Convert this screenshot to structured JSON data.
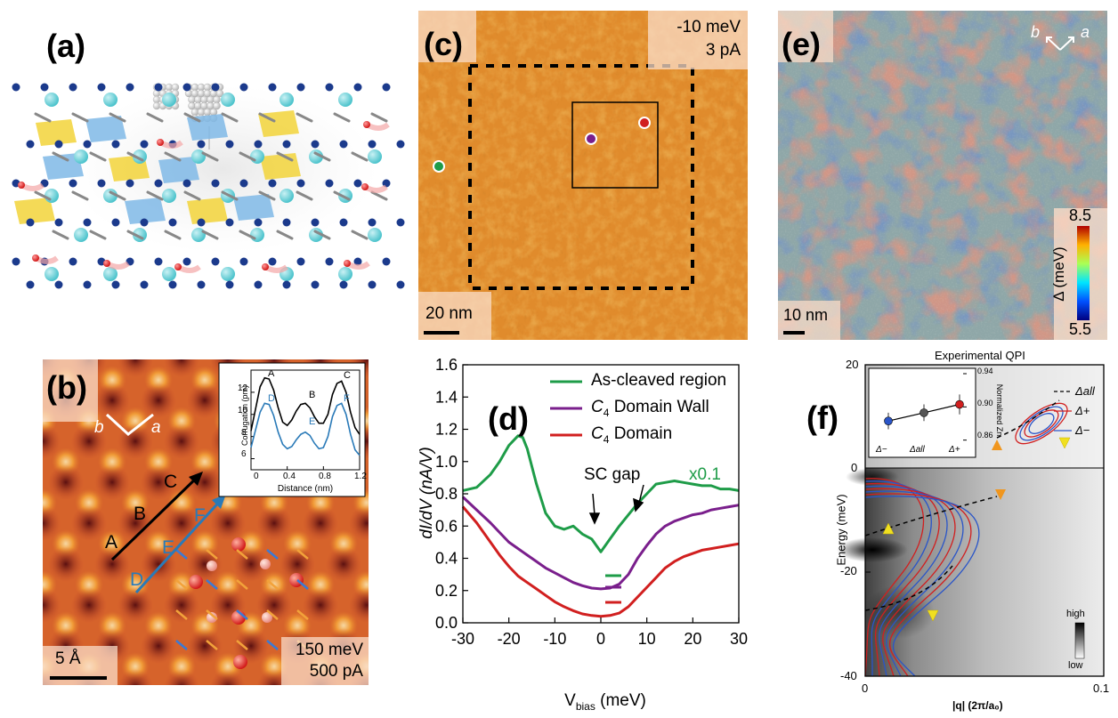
{
  "panels": {
    "a": {
      "label": "(a)"
    },
    "b": {
      "label": "(b)",
      "dir_b": "b",
      "dir_a": "a",
      "line_labels": [
        "A",
        "B",
        "C",
        "D",
        "E",
        "F"
      ],
      "scale": "5 Å",
      "bias": "150 meV",
      "current": "500 pA",
      "inset": {
        "ylabel": "Corrugation (pm)",
        "xlabel": "Distance (nm)",
        "yticks": [
          "6",
          "8",
          "10",
          "12"
        ],
        "xticks": [
          "0",
          "0.4",
          "0.8",
          "1.2"
        ],
        "peak_labels_black": [
          "A",
          "B",
          "C"
        ],
        "peak_labels_blue": [
          "D",
          "E",
          "F"
        ]
      }
    },
    "c": {
      "label": "(c)",
      "bias": "-10 meV",
      "current": "3 pA",
      "scale": "20 nm"
    },
    "d": {
      "label": "(d)",
      "ylabel": "dI/dV (nA/V)",
      "xlabel": "V",
      "xlabel_sub": "bias",
      "xlabel_unit": " (meV)",
      "annotation": "SC gap",
      "scale_note": "x0.1",
      "legend": [
        "As-cleaved region",
        "C",
        "C"
      ],
      "legend_suffix": [
        "",
        " Domain Wall",
        " Domain"
      ],
      "legend_sub": [
        "",
        "4",
        "4"
      ]
    },
    "e": {
      "label": "(e)",
      "dir_b": "b",
      "dir_a": "a",
      "scale": "10 nm",
      "colorbar_max": "8.5",
      "colorbar_min": "5.5",
      "colorbar_label": "Δ (meV)"
    },
    "f": {
      "label": "(f)",
      "title": "Experimental QPI",
      "ylabel": "Energy (meV)",
      "xlabel": "|q| (2π/a₀)",
      "yticks": [
        "20",
        "0",
        "-20",
        "-40"
      ],
      "xticks": [
        "0",
        "0.1"
      ],
      "legend": [
        "Δall",
        "Δ+",
        "Δ−"
      ],
      "colorbar_high": "high",
      "colorbar_low": "low",
      "inset": {
        "ylabel": "Normalized Zn",
        "yticks": [
          "0.94",
          "0.90",
          "0.86"
        ],
        "xticks": [
          "Δ−",
          "Δall",
          "Δ+"
        ]
      }
    }
  },
  "chart_data": [
    {
      "type": "line",
      "panel": "d",
      "xlabel": "Vbias (meV)",
      "ylabel": "dI/dV (nA/V)",
      "xlim": [
        -30,
        30
      ],
      "ylim": [
        0,
        1.6
      ],
      "xticks": [
        -30,
        -20,
        -10,
        0,
        10,
        20,
        30
      ],
      "yticks": [
        0.0,
        0.2,
        0.4,
        0.6,
        0.8,
        1.0,
        1.2,
        1.4,
        1.6
      ],
      "x": [
        -30,
        -27,
        -24,
        -22,
        -20,
        -18,
        -17,
        -16,
        -14,
        -12,
        -10,
        -8,
        -6,
        -4,
        -2,
        0,
        2,
        4,
        6,
        8,
        10,
        12,
        14,
        16,
        18,
        20,
        22,
        24,
        26,
        28,
        30
      ],
      "series": [
        {
          "name": "As-cleaved region",
          "color": "#1e9c48",
          "values": [
            0.82,
            0.84,
            0.92,
            1.0,
            1.1,
            1.16,
            1.15,
            1.08,
            0.86,
            0.68,
            0.6,
            0.58,
            0.6,
            0.55,
            0.52,
            0.44,
            0.52,
            0.6,
            0.67,
            0.74,
            0.8,
            0.86,
            0.87,
            0.88,
            0.87,
            0.86,
            0.85,
            0.85,
            0.83,
            0.83,
            0.82
          ]
        },
        {
          "name": "C4 Domain Wall",
          "color": "#7a1f8c",
          "values": [
            0.78,
            0.7,
            0.62,
            0.56,
            0.5,
            0.46,
            0.44,
            0.42,
            0.38,
            0.34,
            0.31,
            0.28,
            0.25,
            0.23,
            0.215,
            0.21,
            0.215,
            0.24,
            0.3,
            0.4,
            0.48,
            0.55,
            0.6,
            0.63,
            0.65,
            0.67,
            0.68,
            0.7,
            0.71,
            0.72,
            0.73
          ]
        },
        {
          "name": "C4 Domain",
          "color": "#d11f1f",
          "values": [
            0.72,
            0.62,
            0.5,
            0.42,
            0.35,
            0.29,
            0.27,
            0.25,
            0.21,
            0.17,
            0.13,
            0.1,
            0.075,
            0.055,
            0.045,
            0.04,
            0.045,
            0.06,
            0.1,
            0.16,
            0.22,
            0.28,
            0.34,
            0.38,
            0.41,
            0.43,
            0.45,
            0.46,
            0.47,
            0.48,
            0.49
          ]
        }
      ],
      "annotation": "SC gap",
      "scale_note": "x0.1"
    },
    {
      "type": "line",
      "panel": "b-inset",
      "xlabel": "Distance (nm)",
      "ylabel": "Corrugation (pm)",
      "xlim": [
        0,
        1.2
      ],
      "ylim": [
        5,
        14
      ],
      "x": [
        0.0,
        0.05,
        0.1,
        0.15,
        0.2,
        0.25,
        0.3,
        0.35,
        0.4,
        0.45,
        0.5,
        0.55,
        0.6,
        0.65,
        0.7,
        0.75,
        0.8,
        0.85,
        0.9,
        0.95,
        1.0,
        1.05,
        1.1,
        1.15,
        1.2
      ],
      "series": [
        {
          "name": "ABC",
          "color": "#000000",
          "values": [
            8.5,
            10.5,
            12.5,
            13.3,
            13.2,
            12.2,
            10.6,
            9.3,
            9.0,
            9.5,
            10.3,
            10.9,
            11.0,
            10.6,
            9.8,
            9.2,
            9.2,
            10.0,
            11.8,
            12.8,
            13.0,
            12.0,
            10.2,
            8.8,
            8.2
          ]
        },
        {
          "name": "DEF",
          "color": "#2a7ab8",
          "values": [
            7.0,
            8.6,
            10.2,
            11.0,
            10.9,
            9.9,
            8.4,
            7.3,
            6.9,
            7.1,
            7.7,
            8.2,
            8.4,
            8.1,
            7.4,
            6.9,
            7.0,
            8.0,
            9.8,
            10.8,
            11.0,
            10.0,
            8.2,
            6.8,
            6.3
          ]
        }
      ]
    },
    {
      "type": "scatter",
      "panel": "f-inset",
      "ylabel": "Normalized Zn",
      "categories": [
        "Δ−",
        "Δall",
        "Δ+"
      ],
      "ylim": [
        0.85,
        0.94
      ],
      "values": [
        0.883,
        0.893,
        0.903
      ],
      "errors": [
        0.01,
        0.01,
        0.012
      ],
      "colors": [
        "#2a55c8",
        "#555555",
        "#d11f1f"
      ]
    }
  ]
}
